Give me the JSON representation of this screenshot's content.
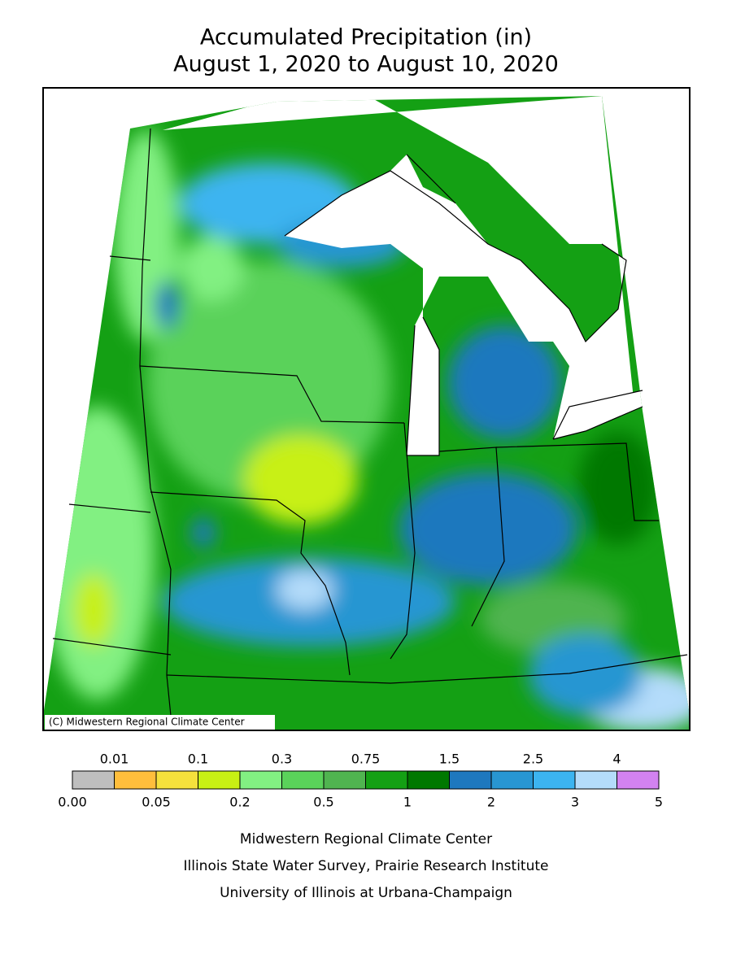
{
  "header": {
    "title": "Accumulated Precipitation (in)",
    "subtitle": "August 1, 2020 to August 10, 2020"
  },
  "map": {
    "copyright": "(C) Midwestern Regional Climate Center"
  },
  "legend": {
    "colors": [
      "#bebebe",
      "#ffbe3c",
      "#f5e13c",
      "#c8f014",
      "#82f082",
      "#5ad25a",
      "#50b450",
      "#14a014",
      "#007800",
      "#1e78be",
      "#2896d2",
      "#3cb4f0",
      "#b4dcfa",
      "#d282f0"
    ],
    "upper_labels": [
      "0.01",
      "0.1",
      "0.3",
      "0.75",
      "1.5",
      "2.5",
      "4"
    ],
    "lower_labels": [
      "0.00",
      "0.05",
      "0.2",
      "0.5",
      "1",
      "2",
      "3",
      "5"
    ]
  },
  "footer": {
    "lines": [
      "Midwestern Regional Climate Center",
      "Illinois State Water Survey, Prairie Research Institute",
      "University of Illinois at Urbana-Champaign"
    ]
  }
}
